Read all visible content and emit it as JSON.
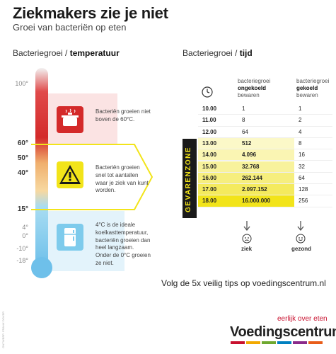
{
  "title": "Ziekmakers zie je niet",
  "subtitle": "Groei van bacteriën op eten",
  "temperature_section": {
    "label_prefix": "Bacteriegroei / ",
    "label_bold": "temperatuur"
  },
  "time_section": {
    "label_prefix": "Bacteriegroei / ",
    "label_bold": "tijd"
  },
  "temperature_scale": [
    {
      "label": "100°",
      "emphasis": false
    },
    {
      "label": "60°",
      "emphasis": true
    },
    {
      "label": "50°",
      "emphasis": true
    },
    {
      "label": "40°",
      "emphasis": true
    },
    {
      "label": "15°",
      "emphasis": true
    },
    {
      "label": "4°",
      "emphasis": false
    },
    {
      "label": "0°",
      "emphasis": false
    },
    {
      "label": "-10°",
      "emphasis": false
    },
    {
      "label": "-18°",
      "emphasis": false
    }
  ],
  "zones": [
    {
      "icon": "cooking-pot-icon",
      "text": "Bacteriën groeien niet boven de 60°C."
    },
    {
      "icon": "warning-triangle-icon",
      "text": "Bacteriën groeien snel tot aantallen waar je ziek van kunt worden."
    },
    {
      "icon": "refrigerator-icon",
      "text": "4°C is de ideale koelkasttemperatuur, bacteriën groeien dan heel langzaam. Onder de 0°C groeien ze niet."
    }
  ],
  "danger_zone_label": "GEVARENZONE",
  "table": {
    "clock_icon": "clock-icon",
    "col_uncooled": {
      "line1": "bacteriegroei",
      "line2": "ongekoeld",
      "line3": "bewaren"
    },
    "col_cooled": {
      "line1": "bacteriegroei",
      "line2": "gekoeld",
      "line3": "bewaren"
    },
    "rows": [
      {
        "time": "10.00",
        "uncooled": "1",
        "cooled": "1",
        "danger": false
      },
      {
        "time": "11.00",
        "uncooled": "8",
        "cooled": "2",
        "danger": false
      },
      {
        "time": "12.00",
        "uncooled": "64",
        "cooled": "4",
        "danger": false
      },
      {
        "time": "13.00",
        "uncooled": "512",
        "cooled": "8",
        "danger": true
      },
      {
        "time": "14.00",
        "uncooled": "4.096",
        "cooled": "16",
        "danger": true
      },
      {
        "time": "15.00",
        "uncooled": "32.768",
        "cooled": "32",
        "danger": true
      },
      {
        "time": "16.00",
        "uncooled": "262.144",
        "cooled": "64",
        "danger": true
      },
      {
        "time": "17.00",
        "uncooled": "2.097.152",
        "cooled": "128",
        "danger": true
      },
      {
        "time": "18.00",
        "uncooled": "16.000.000",
        "cooled": "256",
        "danger": true
      }
    ],
    "outcome_uncooled": {
      "icon": "sick-face-icon",
      "label": "ziek"
    },
    "outcome_cooled": {
      "icon": "happy-face-icon",
      "label": "gezond"
    }
  },
  "footer": "Volg de 5x veilig tips op voedingscentrum.nl",
  "brand_tagline": "eerlijk over eten",
  "brand_name": "Voedingscentrum",
  "credit": "ONTWERP: FRANK DOVER",
  "colors": {
    "red": "#d42a2a",
    "yellow": "#f2e41a",
    "blue": "#7ecbec",
    "brand_red": "#c8102e"
  }
}
